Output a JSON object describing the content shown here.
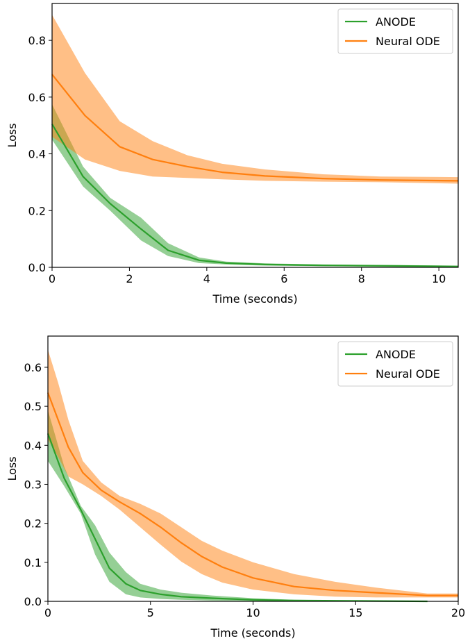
{
  "colors": {
    "anode": "#2ca02c",
    "neural_ode": "#ff7f0e"
  },
  "chart_data": [
    {
      "type": "line",
      "xlabel": "Time (seconds)",
      "ylabel": "Loss",
      "xlim": [
        0,
        10.5
      ],
      "ylim": [
        0,
        0.93
      ],
      "xticks": [
        0,
        2,
        4,
        6,
        8,
        10
      ],
      "xtick_labels": [
        "0",
        "2",
        "4",
        "6",
        "8",
        "10"
      ],
      "yticks": [
        0.0,
        0.2,
        0.4,
        0.6,
        0.8
      ],
      "ytick_labels": [
        "0.0",
        "0.2",
        "0.4",
        "0.6",
        "0.8"
      ],
      "legend": "top-right",
      "series": [
        {
          "name": "ANODE",
          "color": "#2ca02c",
          "x": [
            0,
            0.8,
            1.5,
            2.3,
            3.0,
            3.8,
            4.5,
            5.5,
            7,
            9,
            10.5
          ],
          "y": [
            0.505,
            0.32,
            0.225,
            0.135,
            0.06,
            0.025,
            0.015,
            0.01,
            0.007,
            0.005,
            0.003
          ],
          "lower": [
            0.45,
            0.285,
            0.2,
            0.095,
            0.04,
            0.015,
            0.01,
            0.006,
            0.004,
            0.002,
            0.001
          ],
          "upper": [
            0.575,
            0.355,
            0.245,
            0.175,
            0.085,
            0.035,
            0.02,
            0.014,
            0.01,
            0.008,
            0.006
          ]
        },
        {
          "name": "Neural ODE",
          "color": "#ff7f0e",
          "x": [
            0,
            0.85,
            1.75,
            2.6,
            3.5,
            4.4,
            5.5,
            7,
            8.5,
            10.5
          ],
          "y": [
            0.68,
            0.535,
            0.425,
            0.38,
            0.355,
            0.335,
            0.322,
            0.313,
            0.308,
            0.305
          ],
          "lower": [
            0.46,
            0.38,
            0.34,
            0.32,
            0.315,
            0.31,
            0.305,
            0.302,
            0.3,
            0.295
          ],
          "upper": [
            0.89,
            0.685,
            0.515,
            0.445,
            0.395,
            0.365,
            0.345,
            0.328,
            0.32,
            0.318
          ]
        }
      ]
    },
    {
      "type": "line",
      "xlabel": "Time (seconds)",
      "ylabel": "Loss",
      "xlim": [
        0,
        20
      ],
      "ylim": [
        0,
        0.68
      ],
      "xticks": [
        0,
        5,
        10,
        15,
        20
      ],
      "xtick_labels": [
        "0",
        "5",
        "10",
        "15",
        "20"
      ],
      "yticks": [
        0.0,
        0.1,
        0.2,
        0.3,
        0.4,
        0.5,
        0.6
      ],
      "ytick_labels": [
        "0.0",
        "0.1",
        "0.2",
        "0.3",
        "0.4",
        "0.5",
        "0.6"
      ],
      "legend": "top-right",
      "series": [
        {
          "name": "ANODE",
          "color": "#2ca02c",
          "x": [
            0,
            0.8,
            1.6,
            2.3,
            3.0,
            3.8,
            4.5,
            5.5,
            6.5,
            8,
            10,
            12,
            15,
            18.5
          ],
          "y": [
            0.43,
            0.315,
            0.235,
            0.16,
            0.085,
            0.045,
            0.028,
            0.018,
            0.012,
            0.008,
            0.004,
            0.002,
            0.001,
            0.0
          ],
          "lower": [
            0.36,
            0.295,
            0.225,
            0.12,
            0.05,
            0.018,
            0.01,
            0.006,
            0.004,
            0.002,
            0.001,
            0.0,
            0.0,
            0.0
          ],
          "upper": [
            0.49,
            0.345,
            0.245,
            0.195,
            0.125,
            0.075,
            0.045,
            0.03,
            0.022,
            0.015,
            0.008,
            0.004,
            0.002,
            0.001
          ]
        },
        {
          "name": "Neural ODE",
          "color": "#ff7f0e",
          "x": [
            0,
            0.5,
            1.0,
            1.7,
            2.6,
            3.5,
            4.5,
            5.5,
            6.5,
            7.5,
            8.5,
            10,
            12,
            14,
            16,
            18.5,
            20
          ],
          "y": [
            0.535,
            0.465,
            0.395,
            0.33,
            0.285,
            0.255,
            0.225,
            0.19,
            0.15,
            0.115,
            0.088,
            0.06,
            0.038,
            0.028,
            0.022,
            0.015,
            0.015
          ],
          "lower": [
            0.415,
            0.37,
            0.32,
            0.3,
            0.27,
            0.235,
            0.19,
            0.145,
            0.102,
            0.07,
            0.048,
            0.03,
            0.018,
            0.012,
            0.01,
            0.01,
            0.01
          ],
          "upper": [
            0.645,
            0.56,
            0.465,
            0.36,
            0.305,
            0.27,
            0.25,
            0.225,
            0.19,
            0.155,
            0.13,
            0.1,
            0.07,
            0.05,
            0.035,
            0.02,
            0.02
          ]
        }
      ]
    }
  ]
}
